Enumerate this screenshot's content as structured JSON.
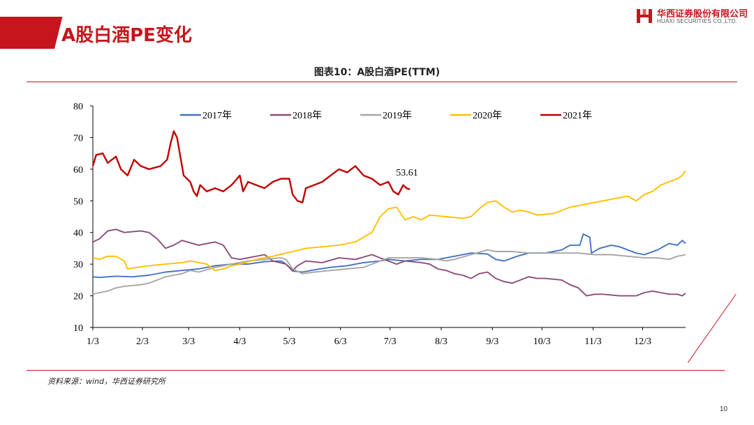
{
  "header": {
    "page_title": "A股白酒PE变化",
    "logo_cn": "华西证券股份有限公司",
    "logo_en": "HUAXI SECURITIES CO.,LTD."
  },
  "chart_caption": "图表10：A股白酒PE(TTM)",
  "source": "资料来源：wind，华西证券研究所",
  "page_number": "10",
  "colors": {
    "brand_red": "#c4161c",
    "s2017": "#4472c4",
    "s2018": "#8e4a7a",
    "s2019": "#a6a6a6",
    "s2020": "#ffc000",
    "s2021": "#c00000"
  },
  "chart_data": {
    "type": "line",
    "title": "A股白酒PE(TTM)",
    "xlabel": "",
    "ylabel": "",
    "ylim": [
      10,
      80
    ],
    "yticks": [
      10,
      20,
      30,
      40,
      50,
      60,
      70,
      80
    ],
    "x_unit": "day of year",
    "xlim": [
      1,
      360
    ],
    "xtick_labels": [
      "1/3",
      "2/3",
      "3/3",
      "4/3",
      "5/3",
      "6/3",
      "7/3",
      "8/3",
      "9/3",
      "10/3",
      "11/3",
      "12/3"
    ],
    "xtick_positions": [
      1,
      31,
      59,
      90,
      120,
      151,
      181,
      212,
      243,
      273,
      304,
      334
    ],
    "legend_position": "top",
    "annotation": {
      "text": "53.61",
      "x": 193,
      "y": 53.61
    },
    "series": [
      {
        "name": "2017年",
        "color": "#4472c4",
        "points": [
          [
            1,
            26
          ],
          [
            5,
            25.8
          ],
          [
            15,
            26.2
          ],
          [
            25,
            26
          ],
          [
            35,
            26.5
          ],
          [
            45,
            27.5
          ],
          [
            55,
            28
          ],
          [
            65,
            28.5
          ],
          [
            75,
            29.5
          ],
          [
            85,
            30
          ],
          [
            95,
            30
          ],
          [
            105,
            30.8
          ],
          [
            115,
            31
          ],
          [
            118,
            30
          ],
          [
            122,
            27.8
          ],
          [
            128,
            27.5
          ],
          [
            135,
            28.2
          ],
          [
            145,
            29
          ],
          [
            155,
            29.5
          ],
          [
            165,
            30.5
          ],
          [
            175,
            31
          ],
          [
            180,
            31.5
          ],
          [
            190,
            31
          ],
          [
            200,
            31.5
          ],
          [
            210,
            31.5
          ],
          [
            220,
            32.5
          ],
          [
            230,
            33.5
          ],
          [
            240,
            33.2
          ],
          [
            245,
            31.5
          ],
          [
            250,
            31
          ],
          [
            258,
            32.5
          ],
          [
            265,
            33.5
          ],
          [
            275,
            33.5
          ],
          [
            285,
            34.5
          ],
          [
            290,
            36
          ],
          [
            296,
            36
          ],
          [
            298,
            39.5
          ],
          [
            302,
            38.5
          ],
          [
            303,
            33.5
          ],
          [
            308,
            35
          ],
          [
            315,
            36
          ],
          [
            320,
            35.5
          ],
          [
            325,
            34.5
          ],
          [
            330,
            33.5
          ],
          [
            335,
            33
          ],
          [
            343,
            34.5
          ],
          [
            350,
            36.5
          ],
          [
            355,
            36
          ],
          [
            358,
            37.5
          ],
          [
            360,
            36.5
          ]
        ]
      },
      {
        "name": "2018年",
        "color": "#8e4a7a",
        "points": [
          [
            1,
            37
          ],
          [
            5,
            38
          ],
          [
            10,
            40.5
          ],
          [
            15,
            41
          ],
          [
            20,
            40
          ],
          [
            30,
            40.5
          ],
          [
            35,
            40
          ],
          [
            40,
            38
          ],
          [
            45,
            35
          ],
          [
            50,
            36
          ],
          [
            55,
            37.5
          ],
          [
            65,
            36
          ],
          [
            70,
            36.5
          ],
          [
            75,
            37
          ],
          [
            80,
            36
          ],
          [
            85,
            32
          ],
          [
            90,
            31.5
          ],
          [
            95,
            32
          ],
          [
            105,
            33
          ],
          [
            110,
            31
          ],
          [
            118,
            30
          ],
          [
            122,
            28
          ],
          [
            125,
            29.5
          ],
          [
            130,
            31
          ],
          [
            140,
            30.5
          ],
          [
            150,
            32
          ],
          [
            160,
            31.5
          ],
          [
            170,
            33
          ],
          [
            175,
            32
          ],
          [
            180,
            31
          ],
          [
            185,
            30
          ],
          [
            190,
            31
          ],
          [
            200,
            30.5
          ],
          [
            205,
            30
          ],
          [
            210,
            28.5
          ],
          [
            215,
            28
          ],
          [
            220,
            27
          ],
          [
            225,
            26.5
          ],
          [
            230,
            25.5
          ],
          [
            235,
            27
          ],
          [
            240,
            27.5
          ],
          [
            245,
            25.5
          ],
          [
            250,
            24.5
          ],
          [
            255,
            24
          ],
          [
            260,
            25
          ],
          [
            265,
            26
          ],
          [
            270,
            25.5
          ],
          [
            275,
            25.5
          ],
          [
            285,
            25
          ],
          [
            290,
            23.5
          ],
          [
            295,
            22.5
          ],
          [
            300,
            20
          ],
          [
            305,
            20.5
          ],
          [
            310,
            20.5
          ],
          [
            320,
            20
          ],
          [
            330,
            20
          ],
          [
            335,
            21
          ],
          [
            340,
            21.5
          ],
          [
            345,
            21
          ],
          [
            350,
            20.5
          ],
          [
            355,
            20.5
          ],
          [
            358,
            20
          ],
          [
            360,
            20.8
          ]
        ]
      },
      {
        "name": "2019年",
        "color": "#a6a6a6",
        "points": [
          [
            1,
            20.5
          ],
          [
            5,
            21
          ],
          [
            10,
            21.5
          ],
          [
            15,
            22.5
          ],
          [
            20,
            23
          ],
          [
            30,
            23.5
          ],
          [
            35,
            24
          ],
          [
            40,
            25
          ],
          [
            45,
            26
          ],
          [
            50,
            26.5
          ],
          [
            55,
            27
          ],
          [
            60,
            28
          ],
          [
            65,
            27.5
          ],
          [
            75,
            29
          ],
          [
            85,
            30
          ],
          [
            95,
            31
          ],
          [
            105,
            31.5
          ],
          [
            115,
            32
          ],
          [
            118,
            31.5
          ],
          [
            122,
            28.5
          ],
          [
            128,
            27
          ],
          [
            135,
            27.5
          ],
          [
            145,
            28
          ],
          [
            155,
            28.5
          ],
          [
            165,
            29
          ],
          [
            175,
            31
          ],
          [
            180,
            32
          ],
          [
            190,
            32
          ],
          [
            200,
            32
          ],
          [
            210,
            31.5
          ],
          [
            215,
            31
          ],
          [
            220,
            31.5
          ],
          [
            230,
            33
          ],
          [
            240,
            34.5
          ],
          [
            245,
            34
          ],
          [
            255,
            34
          ],
          [
            265,
            33.5
          ],
          [
            275,
            33.5
          ],
          [
            285,
            33.5
          ],
          [
            295,
            33.5
          ],
          [
            305,
            33
          ],
          [
            315,
            33
          ],
          [
            325,
            32.5
          ],
          [
            335,
            32
          ],
          [
            343,
            32
          ],
          [
            350,
            31.5
          ],
          [
            355,
            32.5
          ],
          [
            360,
            33
          ]
        ]
      },
      {
        "name": "2020年",
        "color": "#ffc000",
        "points": [
          [
            1,
            32
          ],
          [
            5,
            31.5
          ],
          [
            10,
            32.5
          ],
          [
            15,
            32.5
          ],
          [
            20,
            31
          ],
          [
            22,
            28.5
          ],
          [
            28,
            29
          ],
          [
            35,
            29.5
          ],
          [
            45,
            30
          ],
          [
            55,
            30.5
          ],
          [
            60,
            31
          ],
          [
            70,
            30
          ],
          [
            75,
            28
          ],
          [
            80,
            28.5
          ],
          [
            85,
            29.5
          ],
          [
            90,
            30
          ],
          [
            100,
            31.5
          ],
          [
            110,
            32.5
          ],
          [
            118,
            33.5
          ],
          [
            122,
            34
          ],
          [
            130,
            35
          ],
          [
            140,
            35.5
          ],
          [
            150,
            36
          ],
          [
            160,
            37
          ],
          [
            170,
            40
          ],
          [
            175,
            45
          ],
          [
            180,
            47.5
          ],
          [
            185,
            48
          ],
          [
            190,
            44
          ],
          [
            195,
            45
          ],
          [
            200,
            44
          ],
          [
            205,
            45.5
          ],
          [
            215,
            45
          ],
          [
            225,
            44.5
          ],
          [
            230,
            45
          ],
          [
            235,
            47.5
          ],
          [
            240,
            49.5
          ],
          [
            245,
            50
          ],
          [
            250,
            48
          ],
          [
            255,
            46.5
          ],
          [
            260,
            47
          ],
          [
            265,
            46.5
          ],
          [
            270,
            45.5
          ],
          [
            280,
            46
          ],
          [
            290,
            48
          ],
          [
            300,
            49
          ],
          [
            310,
            50
          ],
          [
            320,
            51
          ],
          [
            325,
            51.5
          ],
          [
            330,
            50
          ],
          [
            335,
            52
          ],
          [
            340,
            53
          ],
          [
            345,
            55
          ],
          [
            350,
            56
          ],
          [
            355,
            57
          ],
          [
            358,
            58
          ],
          [
            360,
            59.5
          ]
        ]
      },
      {
        "name": "2021年",
        "color": "#c00000",
        "points": [
          [
            1,
            61
          ],
          [
            3,
            64.5
          ],
          [
            7,
            65
          ],
          [
            10,
            62
          ],
          [
            15,
            64
          ],
          [
            18,
            60
          ],
          [
            22,
            58
          ],
          [
            26,
            63
          ],
          [
            30,
            61
          ],
          [
            35,
            60
          ],
          [
            42,
            61
          ],
          [
            46,
            63
          ],
          [
            48,
            68
          ],
          [
            50,
            72
          ],
          [
            52,
            70
          ],
          [
            54,
            64
          ],
          [
            56,
            58
          ],
          [
            60,
            56
          ],
          [
            62,
            53
          ],
          [
            64,
            51.5
          ],
          [
            66,
            55
          ],
          [
            70,
            53
          ],
          [
            75,
            54
          ],
          [
            80,
            53
          ],
          [
            85,
            55
          ],
          [
            90,
            58
          ],
          [
            92,
            53
          ],
          [
            95,
            56
          ],
          [
            100,
            55
          ],
          [
            105,
            54
          ],
          [
            110,
            56
          ],
          [
            115,
            57
          ],
          [
            120,
            57
          ],
          [
            122,
            52
          ],
          [
            125,
            50
          ],
          [
            128,
            49.5
          ],
          [
            130,
            54
          ],
          [
            135,
            55
          ],
          [
            140,
            56
          ],
          [
            145,
            58
          ],
          [
            150,
            60
          ],
          [
            155,
            59
          ],
          [
            160,
            61
          ],
          [
            165,
            58
          ],
          [
            170,
            57
          ],
          [
            175,
            55
          ],
          [
            180,
            56
          ],
          [
            183,
            53
          ],
          [
            186,
            52
          ],
          [
            189,
            55
          ],
          [
            191,
            54
          ],
          [
            193,
            53.61
          ]
        ]
      }
    ]
  }
}
